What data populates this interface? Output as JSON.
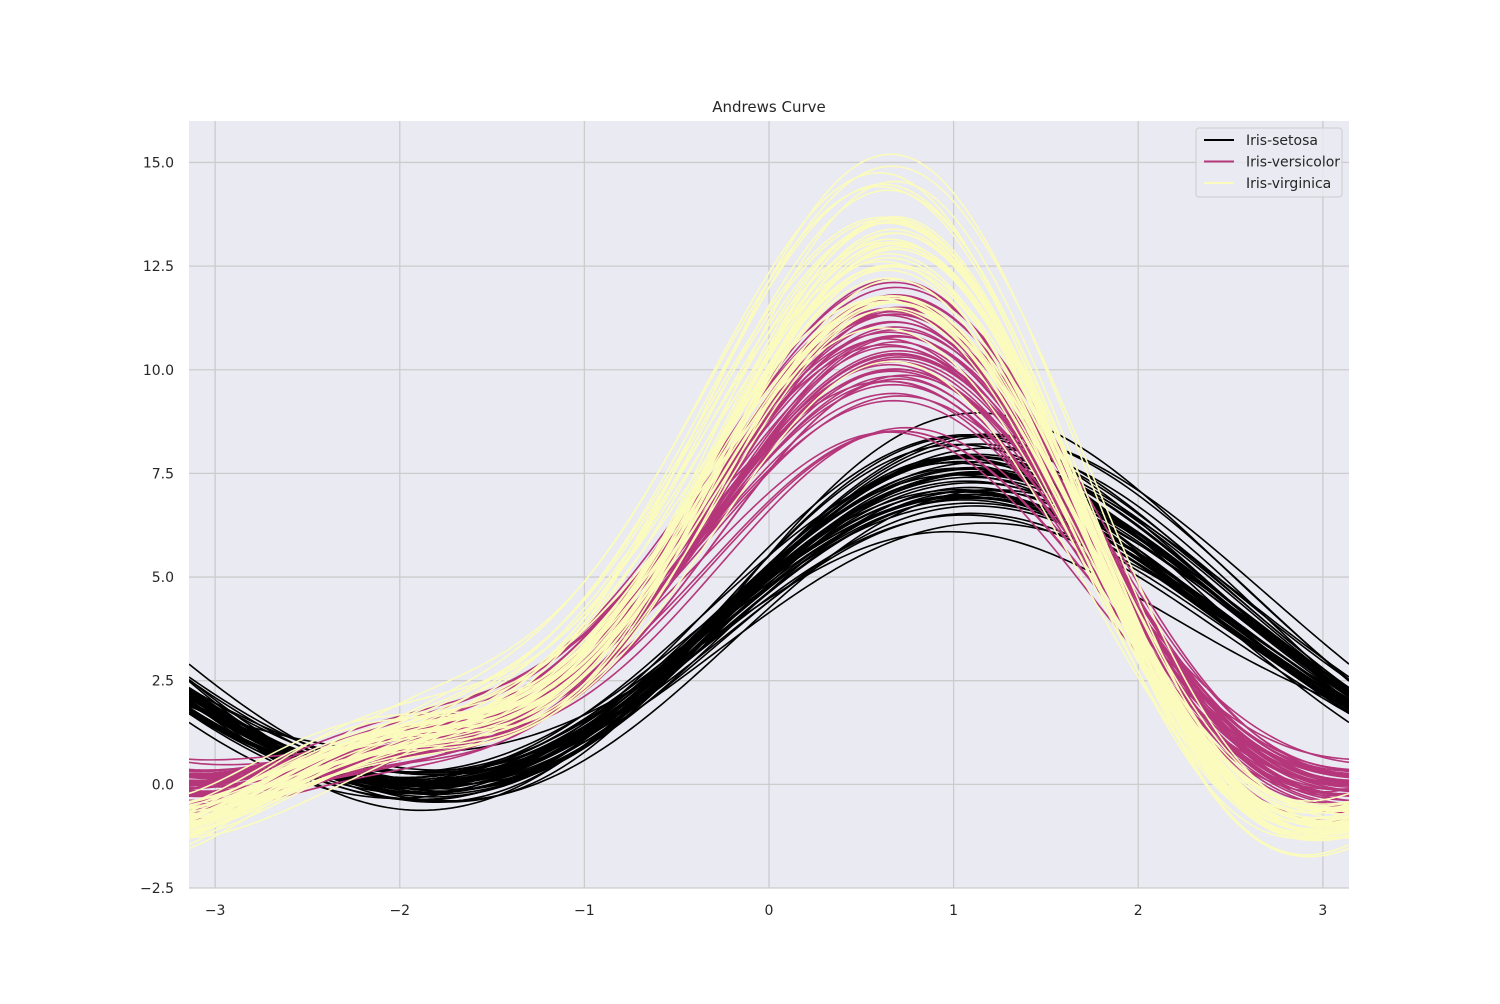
{
  "chart_data": {
    "type": "line",
    "title": "Andrews Curve",
    "xlabel": "",
    "ylabel": "",
    "xlim": [
      -3.1416,
      3.1416
    ],
    "ylim": [
      -2.5,
      16.0
    ],
    "x_ticks": [
      "−3",
      "−2",
      "−1",
      "0",
      "1",
      "2",
      "3"
    ],
    "x_tick_values": [
      -3,
      -2,
      -1,
      0,
      1,
      2,
      3
    ],
    "y_ticks": [
      "−2.5",
      "0.0",
      "2.5",
      "5.0",
      "7.5",
      "10.0",
      "12.5",
      "15.0"
    ],
    "y_tick_values": [
      -2.5,
      0,
      2.5,
      5,
      7.5,
      10,
      12.5,
      15
    ],
    "grid": true,
    "legend_position": "top-right",
    "background_color": "#eaeaf2",
    "grid_color": "#cccccc",
    "function": "f(t) = x1/sqrt(2) + x2*sin(t) + x3*cos(t) + x4*sin(2t)",
    "series": [
      {
        "name": "Iris-setosa",
        "color": "#000000",
        "records": [
          [
            5.1,
            3.5,
            1.4,
            0.2
          ],
          [
            4.9,
            3.0,
            1.4,
            0.2
          ],
          [
            4.7,
            3.2,
            1.3,
            0.2
          ],
          [
            4.6,
            3.1,
            1.5,
            0.2
          ],
          [
            5.0,
            3.6,
            1.4,
            0.2
          ],
          [
            5.4,
            3.9,
            1.7,
            0.4
          ],
          [
            4.6,
            3.4,
            1.4,
            0.3
          ],
          [
            5.0,
            3.4,
            1.5,
            0.2
          ],
          [
            4.4,
            2.9,
            1.4,
            0.2
          ],
          [
            4.9,
            3.1,
            1.5,
            0.1
          ],
          [
            5.4,
            3.7,
            1.5,
            0.2
          ],
          [
            4.8,
            3.4,
            1.6,
            0.2
          ],
          [
            4.8,
            3.0,
            1.4,
            0.1
          ],
          [
            4.3,
            3.0,
            1.1,
            0.1
          ],
          [
            5.8,
            4.0,
            1.2,
            0.2
          ],
          [
            5.7,
            4.4,
            1.5,
            0.4
          ],
          [
            5.4,
            3.9,
            1.3,
            0.4
          ],
          [
            5.1,
            3.5,
            1.4,
            0.3
          ],
          [
            5.7,
            3.8,
            1.7,
            0.3
          ],
          [
            5.1,
            3.8,
            1.5,
            0.3
          ],
          [
            5.4,
            3.4,
            1.7,
            0.2
          ],
          [
            5.1,
            3.7,
            1.5,
            0.4
          ],
          [
            4.6,
            3.6,
            1.0,
            0.2
          ],
          [
            5.1,
            3.3,
            1.7,
            0.5
          ],
          [
            4.8,
            3.4,
            1.9,
            0.2
          ],
          [
            5.0,
            3.0,
            1.6,
            0.2
          ],
          [
            5.0,
            3.4,
            1.6,
            0.4
          ],
          [
            5.2,
            3.5,
            1.5,
            0.2
          ],
          [
            5.2,
            3.4,
            1.4,
            0.2
          ],
          [
            4.7,
            3.2,
            1.6,
            0.2
          ],
          [
            4.8,
            3.1,
            1.6,
            0.2
          ],
          [
            5.4,
            3.4,
            1.5,
            0.4
          ],
          [
            5.2,
            4.1,
            1.5,
            0.1
          ],
          [
            5.5,
            4.2,
            1.4,
            0.2
          ],
          [
            4.9,
            3.1,
            1.5,
            0.1
          ],
          [
            5.0,
            3.2,
            1.2,
            0.2
          ],
          [
            5.5,
            3.5,
            1.3,
            0.2
          ],
          [
            4.9,
            3.1,
            1.5,
            0.1
          ],
          [
            4.4,
            3.0,
            1.3,
            0.2
          ],
          [
            5.1,
            3.4,
            1.5,
            0.2
          ],
          [
            5.0,
            3.5,
            1.3,
            0.3
          ],
          [
            4.5,
            2.3,
            1.3,
            0.3
          ],
          [
            4.4,
            3.2,
            1.3,
            0.2
          ],
          [
            5.0,
            3.5,
            1.6,
            0.6
          ],
          [
            5.1,
            3.8,
            1.9,
            0.4
          ],
          [
            4.8,
            3.0,
            1.4,
            0.3
          ],
          [
            5.1,
            3.8,
            1.6,
            0.2
          ],
          [
            4.6,
            3.2,
            1.4,
            0.2
          ],
          [
            5.3,
            3.7,
            1.5,
            0.2
          ],
          [
            5.0,
            3.3,
            1.4,
            0.2
          ]
        ]
      },
      {
        "name": "Iris-versicolor",
        "color": "#b5367a",
        "records": [
          [
            7.0,
            3.2,
            4.7,
            1.4
          ],
          [
            6.4,
            3.2,
            4.5,
            1.5
          ],
          [
            6.9,
            3.1,
            4.9,
            1.5
          ],
          [
            5.5,
            2.3,
            4.0,
            1.3
          ],
          [
            6.5,
            2.8,
            4.6,
            1.5
          ],
          [
            5.7,
            2.8,
            4.5,
            1.3
          ],
          [
            6.3,
            3.3,
            4.7,
            1.6
          ],
          [
            4.9,
            2.4,
            3.3,
            1.0
          ],
          [
            6.6,
            2.9,
            4.6,
            1.3
          ],
          [
            5.2,
            2.7,
            3.9,
            1.4
          ],
          [
            5.0,
            2.0,
            3.5,
            1.0
          ],
          [
            5.9,
            3.0,
            4.2,
            1.5
          ],
          [
            6.0,
            2.2,
            4.0,
            1.0
          ],
          [
            6.1,
            2.9,
            4.7,
            1.4
          ],
          [
            5.6,
            2.9,
            3.6,
            1.3
          ],
          [
            6.7,
            3.1,
            4.4,
            1.4
          ],
          [
            5.6,
            3.0,
            4.5,
            1.5
          ],
          [
            5.8,
            2.7,
            4.1,
            1.0
          ],
          [
            6.2,
            2.2,
            4.5,
            1.5
          ],
          [
            5.6,
            2.5,
            3.9,
            1.1
          ],
          [
            5.9,
            3.2,
            4.8,
            1.8
          ],
          [
            6.1,
            2.8,
            4.0,
            1.3
          ],
          [
            6.3,
            2.5,
            4.9,
            1.5
          ],
          [
            6.1,
            2.8,
            4.7,
            1.2
          ],
          [
            6.4,
            2.9,
            4.3,
            1.3
          ],
          [
            6.6,
            3.0,
            4.4,
            1.4
          ],
          [
            6.8,
            2.8,
            4.8,
            1.4
          ],
          [
            6.7,
            3.0,
            5.0,
            1.7
          ],
          [
            6.0,
            2.9,
            4.5,
            1.5
          ],
          [
            5.7,
            2.6,
            3.5,
            1.0
          ],
          [
            5.5,
            2.4,
            3.8,
            1.1
          ],
          [
            5.5,
            2.4,
            3.7,
            1.0
          ],
          [
            5.8,
            2.7,
            3.9,
            1.2
          ],
          [
            6.0,
            2.7,
            5.1,
            1.6
          ],
          [
            5.4,
            3.0,
            4.5,
            1.5
          ],
          [
            6.0,
            3.4,
            4.5,
            1.6
          ],
          [
            6.7,
            3.1,
            4.7,
            1.5
          ],
          [
            6.3,
            2.3,
            4.4,
            1.3
          ],
          [
            5.6,
            3.0,
            4.1,
            1.3
          ],
          [
            5.5,
            2.5,
            4.0,
            1.3
          ],
          [
            5.5,
            2.6,
            4.4,
            1.2
          ],
          [
            6.1,
            3.0,
            4.6,
            1.4
          ],
          [
            5.8,
            2.6,
            4.0,
            1.2
          ],
          [
            5.0,
            2.3,
            3.3,
            1.0
          ],
          [
            5.6,
            2.7,
            4.2,
            1.3
          ],
          [
            5.7,
            3.0,
            4.2,
            1.2
          ],
          [
            5.7,
            2.9,
            4.2,
            1.3
          ],
          [
            6.2,
            2.9,
            4.3,
            1.3
          ],
          [
            5.1,
            2.5,
            3.0,
            1.1
          ],
          [
            5.7,
            2.8,
            4.1,
            1.3
          ]
        ]
      },
      {
        "name": "Iris-virginica",
        "color": "#fbfbbe",
        "records": [
          [
            6.3,
            3.3,
            6.0,
            2.5
          ],
          [
            5.8,
            2.7,
            5.1,
            1.9
          ],
          [
            7.1,
            3.0,
            5.9,
            2.1
          ],
          [
            6.3,
            2.9,
            5.6,
            1.8
          ],
          [
            6.5,
            3.0,
            5.8,
            2.2
          ],
          [
            7.6,
            3.0,
            6.6,
            2.1
          ],
          [
            4.9,
            2.5,
            4.5,
            1.7
          ],
          [
            7.3,
            2.9,
            6.3,
            1.8
          ],
          [
            6.7,
            2.5,
            5.8,
            1.8
          ],
          [
            7.2,
            3.6,
            6.1,
            2.5
          ],
          [
            6.5,
            3.2,
            5.1,
            2.0
          ],
          [
            6.4,
            2.7,
            5.3,
            1.9
          ],
          [
            6.8,
            3.0,
            5.5,
            2.1
          ],
          [
            5.7,
            2.5,
            5.0,
            2.0
          ],
          [
            5.8,
            2.8,
            5.1,
            2.4
          ],
          [
            6.4,
            3.2,
            5.3,
            2.3
          ],
          [
            6.5,
            3.0,
            5.5,
            1.8
          ],
          [
            7.7,
            3.8,
            6.7,
            2.2
          ],
          [
            7.7,
            2.6,
            6.9,
            2.3
          ],
          [
            6.0,
            2.2,
            5.0,
            1.5
          ],
          [
            6.9,
            3.2,
            5.7,
            2.3
          ],
          [
            5.6,
            2.8,
            4.9,
            2.0
          ],
          [
            7.7,
            2.8,
            6.7,
            2.0
          ],
          [
            6.3,
            2.7,
            4.9,
            1.8
          ],
          [
            6.7,
            3.3,
            5.7,
            2.1
          ],
          [
            7.2,
            3.2,
            6.0,
            1.8
          ],
          [
            6.2,
            2.8,
            4.8,
            1.8
          ],
          [
            6.1,
            3.0,
            4.9,
            1.8
          ],
          [
            6.4,
            2.8,
            5.6,
            2.1
          ],
          [
            7.2,
            3.0,
            5.8,
            1.6
          ],
          [
            7.4,
            2.8,
            6.1,
            1.9
          ],
          [
            7.9,
            3.8,
            6.4,
            2.0
          ],
          [
            6.4,
            2.8,
            5.6,
            2.2
          ],
          [
            6.3,
            2.8,
            5.1,
            1.5
          ],
          [
            6.1,
            2.6,
            5.6,
            1.4
          ],
          [
            7.7,
            3.0,
            6.1,
            2.3
          ],
          [
            6.3,
            3.4,
            5.6,
            2.4
          ],
          [
            6.4,
            3.1,
            5.5,
            1.8
          ],
          [
            6.0,
            3.0,
            4.8,
            1.8
          ],
          [
            6.9,
            3.1,
            5.4,
            2.1
          ],
          [
            6.7,
            3.1,
            5.6,
            2.4
          ],
          [
            6.9,
            3.1,
            5.1,
            2.3
          ],
          [
            5.8,
            2.7,
            5.1,
            1.9
          ],
          [
            6.8,
            3.2,
            5.9,
            2.3
          ],
          [
            6.7,
            3.3,
            5.7,
            2.5
          ],
          [
            6.7,
            3.0,
            5.2,
            2.3
          ],
          [
            6.3,
            2.5,
            5.0,
            1.9
          ],
          [
            6.5,
            3.0,
            5.2,
            2.0
          ],
          [
            6.2,
            3.4,
            5.4,
            2.3
          ],
          [
            5.9,
            3.0,
            5.1,
            1.8
          ]
        ]
      }
    ]
  }
}
